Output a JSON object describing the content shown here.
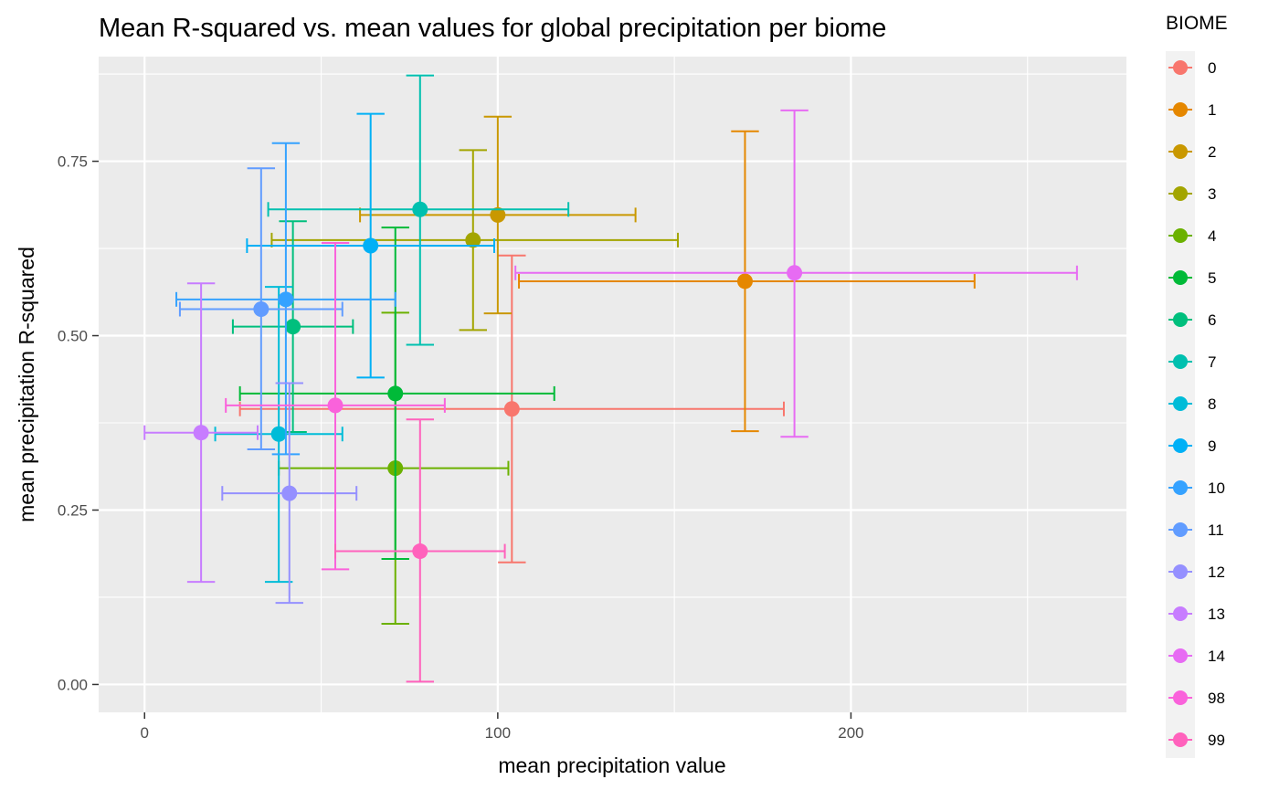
{
  "chart_data": {
    "type": "scatter",
    "title": "Mean R-squared vs. mean values for global precipitation per biome",
    "xlabel": "mean precipitation value",
    "ylabel": "mean precipitation R-squared",
    "xlim": [
      -13,
      278
    ],
    "ylim": [
      -0.04,
      0.9
    ],
    "x_ticks": [
      0,
      100,
      200
    ],
    "x_tick_labels": [
      "0",
      "100",
      "200"
    ],
    "y_ticks": [
      0,
      0.25,
      0.5,
      0.75
    ],
    "y_tick_labels": [
      "0.00",
      "0.25",
      "0.50",
      "0.75"
    ],
    "grid": true,
    "legend_title": "BIOME",
    "legend_position": "right",
    "series": [
      {
        "name": "0",
        "color": "#F8766D",
        "x": 104,
        "y": 0.395,
        "xmin": 27,
        "xmax": 181,
        "ymin": 0.175,
        "ymax": 0.615
      },
      {
        "name": "1",
        "color": "#E58700",
        "x": 170,
        "y": 0.578,
        "xmin": 106,
        "xmax": 235,
        "ymin": 0.363,
        "ymax": 0.793
      },
      {
        "name": "2",
        "color": "#C99800",
        "x": 100,
        "y": 0.673,
        "xmin": 61,
        "xmax": 139,
        "ymin": 0.532,
        "ymax": 0.814
      },
      {
        "name": "3",
        "color": "#A3A500",
        "x": 93,
        "y": 0.637,
        "xmin": 36,
        "xmax": 151,
        "ymin": 0.508,
        "ymax": 0.766
      },
      {
        "name": "4",
        "color": "#6BB100",
        "x": 71,
        "y": 0.31,
        "xmin": 38,
        "xmax": 103,
        "ymin": 0.087,
        "ymax": 0.533
      },
      {
        "name": "5",
        "color": "#00BA38",
        "x": 71,
        "y": 0.417,
        "xmin": 27,
        "xmax": 116,
        "ymin": 0.18,
        "ymax": 0.655
      },
      {
        "name": "6",
        "color": "#00BF7D",
        "x": 42,
        "y": 0.513,
        "xmin": 25,
        "xmax": 59,
        "ymin": 0.362,
        "ymax": 0.664
      },
      {
        "name": "7",
        "color": "#00C0AF",
        "x": 78,
        "y": 0.681,
        "xmin": 35,
        "xmax": 120,
        "ymin": 0.487,
        "ymax": 0.873
      },
      {
        "name": "8",
        "color": "#00BCD8",
        "x": 38,
        "y": 0.359,
        "xmin": 20,
        "xmax": 56,
        "ymin": 0.147,
        "ymax": 0.57
      },
      {
        "name": "9",
        "color": "#00B0F6",
        "x": 64,
        "y": 0.629,
        "xmin": 29,
        "xmax": 99,
        "ymin": 0.44,
        "ymax": 0.818
      },
      {
        "name": "10",
        "color": "#35A2FF",
        "x": 40,
        "y": 0.552,
        "xmin": 9,
        "xmax": 71,
        "ymin": 0.33,
        "ymax": 0.776
      },
      {
        "name": "11",
        "color": "#619CFF",
        "x": 33,
        "y": 0.538,
        "xmin": 10,
        "xmax": 56,
        "ymin": 0.337,
        "ymax": 0.74
      },
      {
        "name": "12",
        "color": "#9590FF",
        "x": 41,
        "y": 0.274,
        "xmin": 22,
        "xmax": 60,
        "ymin": 0.117,
        "ymax": 0.432
      },
      {
        "name": "13",
        "color": "#C77CFF",
        "x": 16,
        "y": 0.361,
        "xmin": 0,
        "xmax": 32,
        "ymin": 0.147,
        "ymax": 0.575
      },
      {
        "name": "14",
        "color": "#E76BF3",
        "x": 184,
        "y": 0.59,
        "xmin": 105,
        "xmax": 264,
        "ymin": 0.355,
        "ymax": 0.823
      },
      {
        "name": "98",
        "color": "#FA62DB",
        "x": 54,
        "y": 0.4,
        "xmin": 23,
        "xmax": 85,
        "ymin": 0.165,
        "ymax": 0.633
      },
      {
        "name": "99",
        "color": "#FF62BC",
        "x": 78,
        "y": 0.191,
        "xmin": 54,
        "xmax": 102,
        "ymin": 0.004,
        "ymax": 0.38
      }
    ]
  }
}
